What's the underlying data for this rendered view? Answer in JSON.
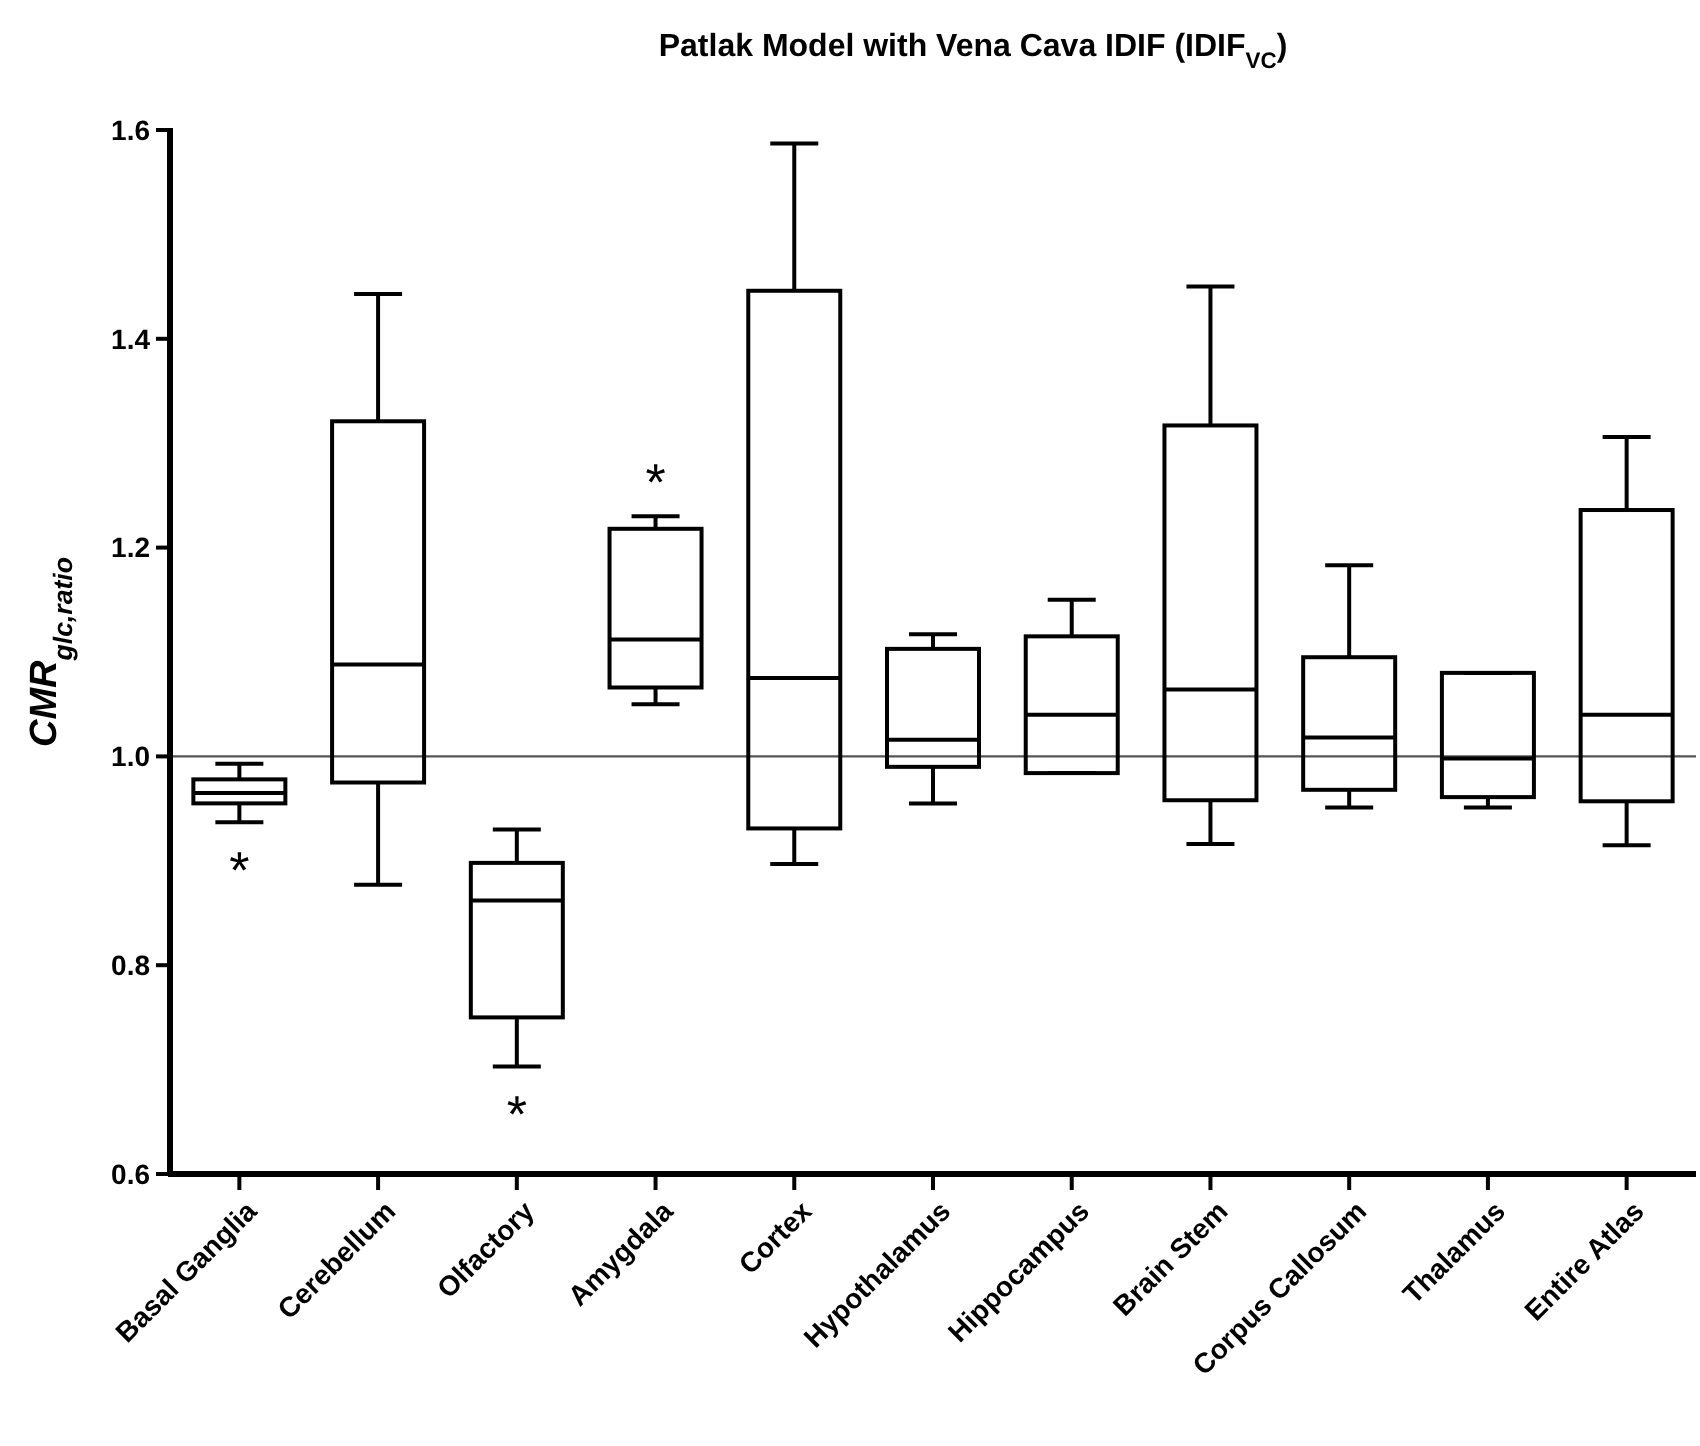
{
  "chart_data": {
    "type": "box",
    "title": "Patlak Model with Vena Cava IDIF (IDIF$_{VC}$)",
    "ylabel": "CMR$_{glc,ratio}$",
    "categories": [
      "Basal Ganglia",
      "Cerebellum",
      "Olfactory",
      "Amygdala",
      "Cortex",
      "Hypothalamus",
      "Hippocampus",
      "Brain Stem",
      "Corpus Callosum",
      "Thalamus",
      "Entire Atlas"
    ],
    "boxes": [
      {
        "low": 0.937,
        "q1": 0.955,
        "median": 0.965,
        "q3": 0.978,
        "high": 0.993
      },
      {
        "low": 0.877,
        "q1": 0.975,
        "median": 1.088,
        "q3": 1.321,
        "high": 1.443
      },
      {
        "low": 0.703,
        "q1": 0.75,
        "median": 0.862,
        "q3": 0.898,
        "high": 0.93
      },
      {
        "low": 1.05,
        "q1": 1.066,
        "median": 1.112,
        "q3": 1.218,
        "high": 1.23
      },
      {
        "low": 0.897,
        "q1": 0.931,
        "median": 1.075,
        "q3": 1.446,
        "high": 1.587
      },
      {
        "low": 0.955,
        "q1": 0.99,
        "median": 1.016,
        "q3": 1.103,
        "high": 1.117
      },
      {
        "low": 0.984,
        "q1": 0.984,
        "median": 1.04,
        "q3": 1.115,
        "high": 1.15
      },
      {
        "low": 0.916,
        "q1": 0.958,
        "median": 1.064,
        "q3": 1.317,
        "high": 1.45
      },
      {
        "low": 0.951,
        "q1": 0.968,
        "median": 1.018,
        "q3": 1.095,
        "high": 1.183
      },
      {
        "low": 0.951,
        "q1": 0.961,
        "median": 0.998,
        "q3": 1.08,
        "high": 1.08
      },
      {
        "low": 0.915,
        "q1": 0.957,
        "median": 1.04,
        "q3": 1.236,
        "high": 1.306
      }
    ],
    "color": "#000000",
    "ylim": [
      0.6,
      1.6
    ],
    "yticks": [
      {
        "value": 0.6,
        "label": "0.6"
      },
      {
        "value": 0.8,
        "label": "0.8"
      },
      {
        "value": 1.0,
        "label": "1.0"
      },
      {
        "value": 1.2,
        "label": "1.2"
      },
      {
        "value": 1.4,
        "label": "1.4"
      },
      {
        "value": 1.6,
        "label": "1.6"
      }
    ],
    "ref_lines": [
      {
        "axis": "y",
        "value": 1.0,
        "color": "#555555"
      }
    ],
    "annotations": [
      {
        "text": "*",
        "x": "Basal Ganglia",
        "y": 0.937
      },
      {
        "text": "*",
        "x": "Olfactory",
        "y": 0.703
      },
      {
        "text": "*",
        "x": "Amygdala",
        "y": 1.23
      }
    ],
    "grid": false
  }
}
